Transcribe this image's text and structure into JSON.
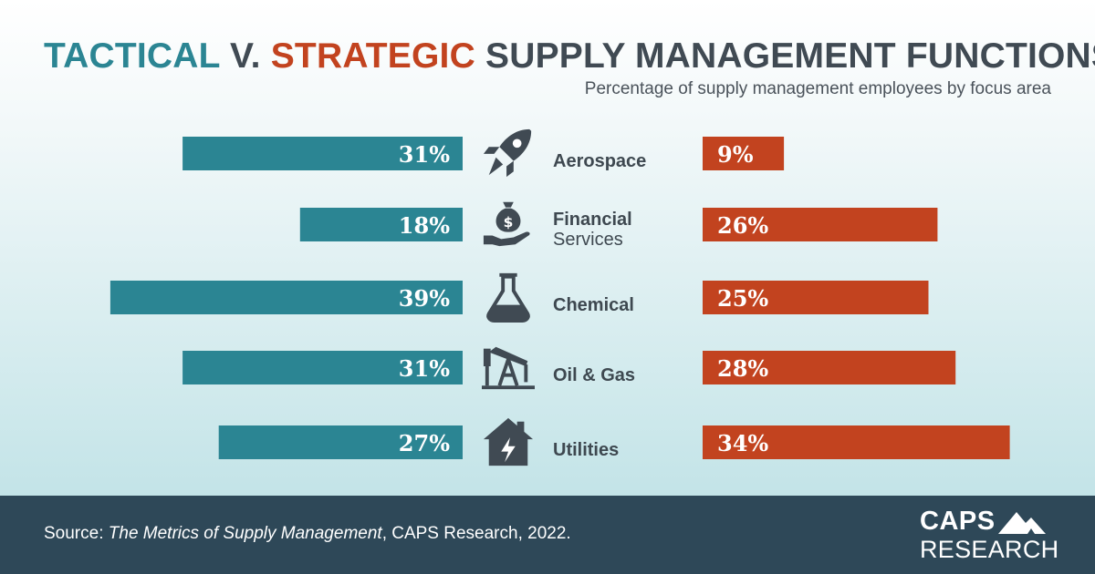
{
  "header": {
    "title_tactical": "TACTICAL",
    "title_v": " V. ",
    "title_strategic": "STRATEGIC",
    "title_rest": " SUPPLY MANAGEMENT FUNCTIONS",
    "subtitle": "Percentage of supply management employees by focus area"
  },
  "colors": {
    "tactical": "#2b8593",
    "strategic": "#c2431f",
    "icon": "#404a53",
    "footer": "#2e4858"
  },
  "chart_data": {
    "type": "bar",
    "title": "TACTICAL V. STRATEGIC SUPPLY MANAGEMENT FUNCTIONS",
    "subtitle": "Percentage of supply management employees by focus area",
    "categories": [
      {
        "name_line1": "Aerospace",
        "name_line2": "",
        "icon": "rocket-icon"
      },
      {
        "name_line1": "Financial",
        "name_line2": "Services",
        "icon": "money-bag-hand-icon"
      },
      {
        "name_line1": "Chemical",
        "name_line2": "",
        "icon": "flask-icon"
      },
      {
        "name_line1": "Oil & Gas",
        "name_line2": "",
        "icon": "oil-pump-icon"
      },
      {
        "name_line1": "Utilities",
        "name_line2": "",
        "icon": "house-power-icon"
      }
    ],
    "series": [
      {
        "name": "Tactical",
        "values": [
          31,
          18,
          39,
          31,
          27
        ],
        "labels": [
          "31%",
          "18%",
          "39%",
          "31%",
          "27%"
        ]
      },
      {
        "name": "Strategic",
        "values": [
          9,
          26,
          25,
          28,
          34
        ],
        "labels": [
          "9%",
          "26%",
          "25%",
          "28%",
          "34%"
        ]
      }
    ],
    "unit": "%"
  },
  "footer": {
    "source_prefix": "Source: ",
    "source_title": "The Metrics of Supply Management",
    "source_suffix": ", CAPS Research, 2022.",
    "logo_line1": "CAPS",
    "logo_line2": "RESEARCH"
  }
}
